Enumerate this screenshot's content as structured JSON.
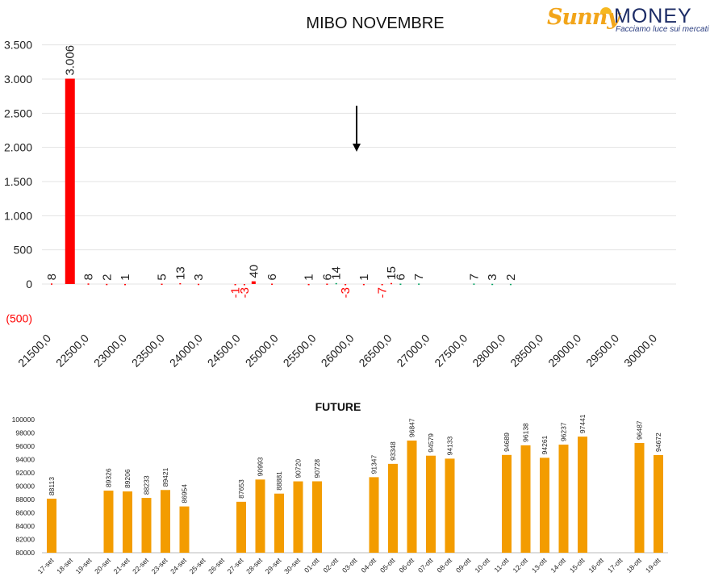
{
  "brand": {
    "part1": "Sunny",
    "part2": "MONEY",
    "tagline": "Facciamo luce sui mercati"
  },
  "colors": {
    "negative": "#ff0000",
    "positive": "#00a060",
    "future": "#f39c00",
    "text": "#111111"
  },
  "chart_data": [
    {
      "type": "bar",
      "title": "MIBO NOVEMBRE",
      "xlabel": "",
      "ylabel": "",
      "ylim": [
        -500,
        3500
      ],
      "y_ticks": [
        -500,
        0,
        500,
        1000,
        1500,
        2000,
        2500,
        3000,
        3500
      ],
      "y_tick_labels": [
        "(500)",
        "0",
        "500",
        "1.000",
        "1.500",
        "2.000",
        "2.500",
        "3.000",
        "3.500"
      ],
      "x_ticks": [
        "21500,0",
        "22500,0",
        "23000,0",
        "23500,0",
        "24000,0",
        "24500,0",
        "25000,0",
        "25500,0",
        "26000,0",
        "26500,0",
        "27000,0",
        "27500,0",
        "28000,0",
        "28500,0",
        "29000,0",
        "29500,0",
        "30000,0"
      ],
      "grid": true,
      "annotation": "down arrow at strike 26000",
      "series": [
        {
          "color": "#ff0000",
          "points": [
            {
              "x": 21500,
              "y": 8
            },
            {
              "x": 22000,
              "y": 3006,
              "label": "3.006"
            },
            {
              "x": 22500,
              "y": 8
            },
            {
              "x": 23000,
              "y": 2
            },
            {
              "x": 23500,
              "y": 1
            },
            {
              "x": 24500,
              "y": 5
            },
            {
              "x": 25000,
              "y": 13
            },
            {
              "x": 25500,
              "y": 3
            },
            {
              "x": 26500,
              "y": -1
            },
            {
              "x": 26750,
              "y": -3
            },
            {
              "x": 27000,
              "y": 40
            },
            {
              "x": 27500,
              "y": 6
            },
            {
              "x": 28500,
              "y": 1
            },
            {
              "x": 29000,
              "y": 6
            },
            {
              "x": 29500,
              "y": -3
            },
            {
              "x": 30000,
              "y": 1
            },
            {
              "x": 30500,
              "y": -7
            },
            {
              "x": 30750,
              "y": 15
            }
          ]
        },
        {
          "color": "#00a060",
          "points": [
            {
              "x": 29250,
              "y": 14
            },
            {
              "x": 31000,
              "y": 6
            },
            {
              "x": 31500,
              "y": 7
            },
            {
              "x": 33000,
              "y": 7
            },
            {
              "x": 33500,
              "y": 3
            },
            {
              "x": 34000,
              "y": 2
            }
          ]
        }
      ]
    },
    {
      "type": "bar",
      "title": "FUTURE",
      "xlabel": "",
      "ylabel": "",
      "ylim": [
        80000,
        100000
      ],
      "y_ticks": [
        80000,
        82000,
        84000,
        86000,
        88000,
        90000,
        92000,
        94000,
        96000,
        98000,
        100000
      ],
      "categories": [
        "17-set",
        "18-set",
        "19-set",
        "20-set",
        "21-set",
        "22-set",
        "23-set",
        "24-set",
        "25-set",
        "26-set",
        "27-set",
        "28-set",
        "29-set",
        "30-set",
        "01-ott",
        "02-ott",
        "03-ott",
        "04-ott",
        "05-ott",
        "06-ott",
        "07-ott",
        "08-ott",
        "09-ott",
        "10-ott",
        "11-ott",
        "12-ott",
        "13-ott",
        "14-ott",
        "15-ott",
        "16-ott",
        "17-ott",
        "18-ott",
        "19-ott"
      ],
      "values": [
        88113,
        null,
        null,
        89326,
        89206,
        88233,
        89421,
        86954,
        null,
        null,
        87653,
        90993,
        88881,
        90720,
        90728,
        null,
        null,
        91347,
        93348,
        96847,
        94579,
        94133,
        null,
        null,
        94689,
        96138,
        94261,
        96237,
        97441,
        null,
        null,
        96487,
        94672
      ],
      "color": "#f39c00",
      "grid": false
    }
  ]
}
